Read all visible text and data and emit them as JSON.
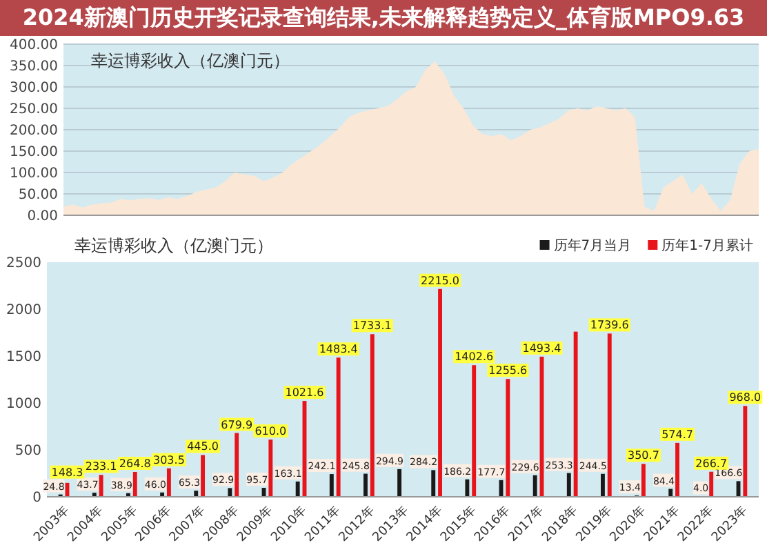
{
  "chart_data": [
    {
      "type": "area",
      "title": "幸运博彩收入（亿澳门元）",
      "annotations": [
        "2024新澳门历史开奖记录查询结果,未来解释趋势定义_体育版MPO9.63"
      ],
      "categories": [
        null,
        null,
        null,
        null,
        null,
        null,
        null,
        null,
        null,
        null,
        null,
        null,
        null,
        null,
        null,
        null,
        null,
        null,
        null,
        null,
        null,
        null,
        null,
        null,
        null,
        null,
        null,
        null,
        null,
        null,
        null,
        null,
        null,
        null,
        null,
        null,
        null,
        null,
        null,
        null,
        null,
        null,
        null,
        null,
        null,
        null,
        null,
        null,
        null,
        null,
        null,
        null,
        null,
        null,
        null,
        null,
        null,
        null,
        null,
        null,
        null,
        null,
        null,
        null,
        null,
        null,
        null,
        null,
        null,
        null,
        null,
        null,
        null,
        null
      ],
      "values": [
        20,
        25,
        18,
        25,
        28,
        30,
        38,
        35,
        38,
        40,
        36,
        42,
        38,
        45,
        55,
        60,
        65,
        80,
        100,
        95,
        92,
        80,
        88,
        100,
        120,
        135,
        150,
        165,
        185,
        205,
        230,
        240,
        245,
        250,
        255,
        270,
        290,
        300,
        340,
        360,
        330,
        280,
        250,
        210,
        190,
        185,
        190,
        175,
        185,
        200,
        205,
        215,
        225,
        245,
        250,
        245,
        255,
        250,
        245,
        250,
        230,
        20,
        10,
        65,
        80,
        95,
        50,
        75,
        40,
        10,
        35,
        120,
        150,
        155
      ],
      "color": "#fbe7d6",
      "ylim": [
        0,
        400
      ],
      "yticks": [
        {
          "value": 0,
          "label": "0.00"
        },
        {
          "value": 50,
          "label": "50.00"
        },
        {
          "value": 100,
          "label": "100.00"
        },
        {
          "value": 150,
          "label": "150.00"
        },
        {
          "value": 200,
          "label": "200.00"
        },
        {
          "value": 250,
          "label": "250.00"
        },
        {
          "value": 300,
          "label": "300.00"
        },
        {
          "value": 350,
          "label": "350.00"
        },
        {
          "value": 400,
          "label": "400.00"
        }
      ],
      "grid": "y"
    },
    {
      "type": "bar",
      "title": "幸运博彩收入（亿澳门元）",
      "categories": [
        "2003年",
        "2004年",
        "2005年",
        "2006年",
        "2007年",
        "2008年",
        "2009年",
        "2010年",
        "2011年",
        "2012年",
        "2013年",
        "2014年",
        "2015年",
        "2016年",
        "2017年",
        "2018年",
        "2019年",
        "2020年",
        "2021年",
        "2022年",
        "2023年"
      ],
      "series": [
        {
          "name": "历年7月当月",
          "color": "#1a1a1a",
          "values": [
            24.8,
            43.7,
            38.9,
            46.0,
            65.3,
            92.9,
            95.7,
            163.1,
            242.1,
            245.8,
            294.9,
            284.2,
            186.2,
            177.7,
            229.6,
            253.3,
            244.5,
            13.4,
            84.4,
            4.0,
            166.6
          ],
          "value_labels": [
            "24.8",
            "43.7",
            "38.9",
            "46.0",
            "65.3",
            "92.9",
            "95.7",
            "163.1",
            "242.1",
            "245.8",
            "294.9",
            "284.2",
            "186.2",
            "177.7",
            "229.6",
            "253.3",
            "244.5",
            "13.4",
            "84.4",
            "4.0",
            "166.6"
          ]
        },
        {
          "name": "历年1-7月累计",
          "color": "#e8141b",
          "values": [
            148.3,
            233.1,
            264.8,
            303.5,
            445.0,
            679.9,
            610.0,
            1021.6,
            1483.4,
            1733.1,
            null,
            2215.0,
            1402.6,
            1255.6,
            1493.4,
            1760,
            1739.6,
            350.7,
            574.7,
            266.7,
            968.0
          ],
          "value_labels": [
            "148.3",
            "233.1",
            "264.8",
            "303.5",
            "445.0",
            "679.9",
            "610.0",
            "1021.6",
            "1483.4",
            "1733.1",
            null,
            "2215.0",
            "1402.6",
            "1255.6",
            "1493.4",
            null,
            "1739.6",
            "350.7",
            "574.7",
            "266.7",
            "968.0"
          ]
        }
      ],
      "ylim": [
        0,
        2500
      ],
      "yticks": [
        0,
        500,
        1000,
        1500,
        2000,
        2500
      ],
      "legend": "top right"
    }
  ]
}
